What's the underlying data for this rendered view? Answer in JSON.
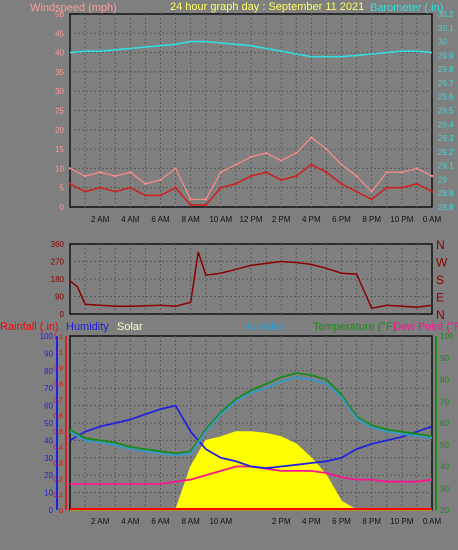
{
  "panel1": {
    "title": "24 hour graph day : September 11 2021",
    "left_label": "Windspeed (mph)",
    "right_label": "Barometer (.in)"
  },
  "panel3": {
    "labels": {
      "rainfall": "Rainfall (.in)",
      "humidity": "Humidity",
      "solar": "Solar",
      "humidex": "Humidex",
      "temperature": "Temperature (°F)",
      "dewpoint": "Dew Point (°F)"
    }
  },
  "colors": {
    "background": "#7f7f7f",
    "plot_background": "#808080",
    "grid": "#5a5a5a",
    "wind_avg": "#cc2222",
    "wind_gust": "#ff8a8a",
    "wind_axis": "#ff9999",
    "barometer": "#33dddd",
    "direction": "#8b0000",
    "rain": "#ff0000",
    "humidity": "#2222dd",
    "solar": "#ffff00",
    "humidex": "#3399cc",
    "temperature": "#1a8a1a",
    "dewpoint": "#ff1493",
    "frame": "#111111",
    "title": "#ffff66"
  },
  "chart_data": [
    {
      "type": "line",
      "name": "wind_barometer",
      "title": "24 hour graph day : September 11 2021",
      "x_ticks": [
        "2 AM",
        "4 AM",
        "6 AM",
        "8 AM",
        "10 AM",
        "12 PM",
        "2 PM",
        "4 PM",
        "6 PM",
        "8 PM",
        "10 PM",
        "0 AM"
      ],
      "y_left_label": "Windspeed (mph)",
      "y_left_range": [
        0,
        50
      ],
      "y_left_ticks": [
        0,
        5,
        10,
        15,
        20,
        25,
        30,
        35,
        40,
        45,
        50
      ],
      "y_right_label": "Barometer (.in)",
      "y_right_range": [
        28.8,
        30.2
      ],
      "y_right_ticks": [
        "28.8",
        "28.9",
        "29",
        "29.1",
        "29.2",
        "29.3",
        "29.4",
        "29.5",
        "29.6",
        "29.7",
        "29.8",
        "29.9",
        "30",
        "30.1",
        "30.2"
      ],
      "x_hours": [
        0,
        1,
        2,
        3,
        4,
        5,
        6,
        7,
        8,
        9,
        10,
        11,
        12,
        13,
        14,
        15,
        16,
        17,
        18,
        19,
        20,
        21,
        22,
        23,
        24
      ],
      "series": [
        {
          "axis": "left",
          "values": [
            6,
            4,
            5,
            4,
            5,
            3,
            3,
            5,
            0.5,
            0.5,
            5,
            6,
            8,
            9,
            7,
            8,
            11,
            9,
            6,
            4,
            2,
            5,
            5,
            6,
            4
          ]
        },
        {
          "axis": "left",
          "values": [
            10,
            8,
            9,
            8,
            9,
            6,
            7,
            10,
            2,
            2,
            9,
            11,
            13,
            14,
            12,
            14,
            18,
            15,
            11,
            8,
            4,
            9,
            9,
            10,
            8
          ]
        },
        {
          "axis": "right",
          "values": [
            29.92,
            29.93,
            29.93,
            29.94,
            29.95,
            29.96,
            29.97,
            29.98,
            30.0,
            30.0,
            29.99,
            29.98,
            29.97,
            29.95,
            29.93,
            29.91,
            29.89,
            29.89,
            29.89,
            29.9,
            29.91,
            29.92,
            29.93,
            29.93,
            29.92
          ]
        }
      ]
    },
    {
      "type": "line",
      "name": "wind_direction",
      "y_range": [
        0,
        360
      ],
      "y_ticks": [
        0,
        90,
        180,
        270,
        360
      ],
      "compass_labels": [
        "N",
        "E",
        "S",
        "W",
        "N"
      ],
      "x_hours": [
        0,
        0.5,
        1,
        2,
        3,
        4,
        5,
        6,
        7,
        8,
        8.5,
        9,
        10,
        11,
        12,
        13,
        14,
        15,
        16,
        17,
        18,
        19,
        20,
        21,
        22,
        23,
        24
      ],
      "series": [
        {
          "values": [
            170,
            140,
            50,
            45,
            40,
            40,
            42,
            45,
            40,
            60,
            320,
            200,
            210,
            230,
            250,
            260,
            270,
            265,
            255,
            235,
            210,
            205,
            30,
            45,
            40,
            35,
            45
          ]
        }
      ]
    },
    {
      "type": "line",
      "name": "temperature_humidity_solar_rain",
      "x_ticks": [
        "2 AM",
        "4 AM",
        "6 AM",
        "8 AM",
        "10 AM",
        "2 PM",
        "4 PM",
        "6 PM",
        "8 PM",
        "10 PM",
        "0 AM"
      ],
      "y_left_percent_ticks": [
        0,
        10,
        20,
        30,
        40,
        50,
        60,
        70,
        80,
        90,
        100
      ],
      "y_left_percent_range": [
        0,
        100
      ],
      "y_rain_ticks": [
        "0",
        "0.1",
        "0.2",
        "0.3",
        "0.4",
        "0.5",
        "0.6",
        "0.7",
        "0.8",
        "0.9",
        "1",
        "1.1"
      ],
      "y_rain_range": [
        0,
        1.1
      ],
      "y_right_ticks": [
        20,
        30,
        40,
        50,
        60,
        70,
        80,
        90,
        100
      ],
      "y_right_range": [
        20,
        100
      ],
      "x_hours": [
        0,
        1,
        2,
        3,
        4,
        5,
        6,
        7,
        8,
        9,
        10,
        11,
        12,
        13,
        14,
        15,
        16,
        17,
        18,
        19,
        20,
        21,
        22,
        23,
        24
      ],
      "series": [
        {
          "axis": "percent",
          "values": [
            40,
            45,
            48,
            50,
            52,
            55,
            58,
            60,
            45,
            35,
            30,
            28,
            25,
            24,
            25,
            26,
            27,
            28,
            30,
            35,
            38,
            40,
            42,
            45,
            48
          ]
        },
        {
          "axis": "percent",
          "values": [
            0,
            0,
            0,
            0,
            0,
            0,
            0,
            0,
            25,
            40,
            42,
            45,
            45,
            44,
            42,
            38,
            30,
            20,
            5,
            0,
            0,
            0,
            0,
            0,
            0
          ]
        },
        {
          "axis": "rain",
          "values": [
            0,
            0,
            0,
            0,
            0,
            0,
            0,
            0,
            0,
            0,
            0,
            0,
            0,
            0,
            0,
            0,
            0,
            0,
            0,
            0,
            0,
            0,
            0,
            0,
            0
          ]
        },
        {
          "axis": "temp",
          "values": [
            56,
            52,
            51,
            50,
            48,
            47,
            46,
            45,
            46,
            56,
            64,
            70,
            74,
            76,
            79,
            81,
            80,
            78,
            72,
            62,
            58,
            56,
            55,
            54,
            53
          ]
        },
        {
          "axis": "temp",
          "values": [
            57,
            53,
            52,
            51,
            49,
            48,
            47,
            46,
            47,
            57,
            65,
            71,
            75,
            78,
            81,
            83,
            82,
            80,
            73,
            63,
            59,
            57,
            56,
            55,
            54
          ]
        },
        {
          "axis": "temp",
          "values": [
            32,
            32,
            32,
            32,
            32,
            32,
            32,
            33,
            34,
            36,
            38,
            40,
            40,
            39,
            38,
            38,
            38,
            37,
            35,
            34,
            34,
            33,
            33,
            33,
            34
          ]
        }
      ]
    }
  ]
}
